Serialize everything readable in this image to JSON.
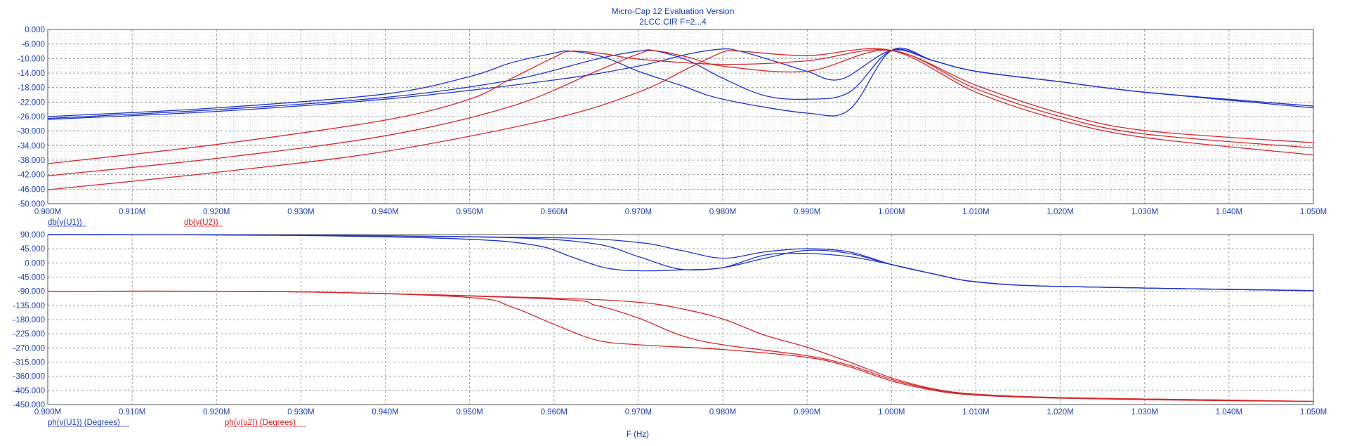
{
  "window": {
    "title": "Micro-Cap 12 Evaluation Version",
    "subtitle": "2LCC.CIR F=2...4"
  },
  "colors": {
    "u1": "#1f36c8",
    "u2": "#d42a2a",
    "axis_text": "#1a3fb0",
    "grid": "#909090"
  },
  "chart_data": [
    {
      "type": "line",
      "xlabel": "",
      "ylabel": "",
      "xlim": [
        0.9,
        1.05
      ],
      "ylim": [
        -50,
        0
      ],
      "x_ticks": [
        "0.900M",
        "0.910M",
        "0.920M",
        "0.930M",
        "0.940M",
        "0.950M",
        "0.960M",
        "0.970M",
        "0.980M",
        "0.990M",
        "1.000M",
        "1.010M",
        "1.020M",
        "1.030M",
        "1.040M",
        "1.050M"
      ],
      "y_ticks": [
        "0.000",
        "-6.000",
        "-10.000",
        "-14.000",
        "-18.000",
        "-22.000",
        "-26.000",
        "-30.000",
        "-34.000",
        "-38.000",
        "-42.000",
        "-46.000",
        "-50.000"
      ],
      "grid": "dense dotted",
      "legend": [
        "db(v(U1))",
        "db(v(U2))"
      ],
      "series": [
        {
          "name": "db(v(U1))",
          "group": "u1",
          "x": [
            0.9,
            0.92,
            0.94,
            0.95,
            0.955,
            0.96,
            0.962,
            0.966,
            0.97,
            0.975,
            0.98,
            0.99,
            0.995,
            1.0,
            1.005,
            1.01,
            1.02,
            1.03,
            1.05
          ],
          "y": [
            -25,
            -22.5,
            -18.5,
            -13.5,
            -9.5,
            -6.8,
            -6.2,
            -8,
            -12,
            -16,
            -20,
            -24,
            -23,
            -6,
            -9,
            -12,
            -15,
            -18,
            -22
          ]
        },
        {
          "name": "db(v(U1))",
          "group": "u1",
          "x": [
            0.9,
            0.92,
            0.94,
            0.955,
            0.965,
            0.97,
            0.972,
            0.976,
            0.98,
            0.985,
            0.99,
            0.995,
            1.0,
            1.005,
            1.01,
            1.02,
            1.03,
            1.05
          ],
          "y": [
            -25.5,
            -23,
            -19.5,
            -14.5,
            -8.5,
            -6.2,
            -6.1,
            -9,
            -14,
            -19,
            -20,
            -18,
            -6,
            -9,
            -12,
            -15,
            -18,
            -22
          ]
        },
        {
          "name": "db(v(U1))",
          "group": "u1",
          "x": [
            0.9,
            0.92,
            0.94,
            0.96,
            0.97,
            0.976,
            0.98,
            0.982,
            0.986,
            0.99,
            0.994,
            1.0,
            1.005,
            1.01,
            1.02,
            1.03,
            1.05
          ],
          "y": [
            -25.8,
            -23.5,
            -20,
            -14.5,
            -10.5,
            -7,
            -5.6,
            -6.2,
            -9,
            -12,
            -14.3,
            -6,
            -9,
            -12,
            -15,
            -18,
            -22.5
          ]
        },
        {
          "name": "db(v(U2))",
          "group": "u2",
          "x": [
            0.9,
            0.92,
            0.94,
            0.95,
            0.955,
            0.96,
            0.962,
            0.966,
            0.97,
            0.98,
            0.99,
            1.0,
            1.01,
            1.02,
            1.03,
            1.05
          ],
          "y": [
            -38.5,
            -33,
            -26,
            -20,
            -14,
            -8,
            -6.2,
            -7,
            -8.5,
            -10,
            -9,
            -6,
            -16,
            -24,
            -29,
            -32.5
          ]
        },
        {
          "name": "db(v(U2))",
          "group": "u2",
          "x": [
            0.9,
            0.92,
            0.94,
            0.955,
            0.965,
            0.97,
            0.972,
            0.976,
            0.98,
            0.99,
            1.0,
            1.01,
            1.02,
            1.03,
            1.05
          ],
          "y": [
            -42,
            -37,
            -30.5,
            -22,
            -12,
            -7,
            -6.1,
            -8,
            -10.5,
            -12,
            -6,
            -17,
            -25,
            -30,
            -34
          ]
        },
        {
          "name": "db(v(U2))",
          "group": "u2",
          "x": [
            0.9,
            0.92,
            0.94,
            0.96,
            0.97,
            0.976,
            0.98,
            0.982,
            0.99,
            1.0,
            1.01,
            1.02,
            1.03,
            1.05
          ],
          "y": [
            -46,
            -41,
            -35,
            -25.5,
            -18,
            -11,
            -6.5,
            -6.2,
            -7.5,
            -6,
            -18,
            -26,
            -31,
            -36
          ]
        }
      ]
    },
    {
      "type": "line",
      "xlabel": "F (Hz)",
      "ylabel": "",
      "xlim": [
        0.9,
        1.05
      ],
      "ylim": [
        -450,
        90
      ],
      "x_ticks": [
        "0.900M",
        "0.910M",
        "0.920M",
        "0.930M",
        "0.940M",
        "0.950M",
        "0.960M",
        "0.970M",
        "0.980M",
        "0.990M",
        "1.000M",
        "1.010M",
        "1.020M",
        "1.030M",
        "1.040M",
        "1.050M"
      ],
      "y_ticks": [
        "90.000",
        "45.000",
        "0.000",
        "-45.000",
        "-90.000",
        "-135.000",
        "-180.000",
        "-225.000",
        "-270.000",
        "-315.000",
        "-360.000",
        "-405.000",
        "-450.000"
      ],
      "grid": "dashed",
      "legend": [
        "ph(v(U1)) (Degrees)",
        "ph(v(u2)) (Degrees)"
      ],
      "series": [
        {
          "name": "ph(v(U1)) (Degrees)",
          "group": "u1",
          "x": [
            0.9,
            0.93,
            0.95,
            0.958,
            0.962,
            0.966,
            0.97,
            0.975,
            0.98,
            0.985,
            0.99,
            0.995,
            1.0,
            1.005,
            1.01,
            1.02,
            1.05
          ],
          "y": [
            90,
            87,
            75,
            55,
            20,
            -15,
            -25,
            -22,
            -15,
            25,
            30,
            20,
            -5,
            -35,
            -60,
            -75,
            -88
          ]
        },
        {
          "name": "ph(v(U1)) (Degrees)",
          "group": "u1",
          "x": [
            0.9,
            0.93,
            0.955,
            0.965,
            0.97,
            0.975,
            0.98,
            0.985,
            0.99,
            0.995,
            1.0,
            1.005,
            1.01,
            1.02,
            1.05
          ],
          "y": [
            90,
            88,
            80,
            60,
            20,
            -20,
            -15,
            15,
            40,
            30,
            -5,
            -35,
            -60,
            -75,
            -88
          ]
        },
        {
          "name": "ph(v(U1)) (Degrees)",
          "group": "u1",
          "x": [
            0.9,
            0.93,
            0.96,
            0.97,
            0.975,
            0.98,
            0.985,
            0.99,
            0.995,
            1.0,
            1.005,
            1.01,
            1.02,
            1.05
          ],
          "y": [
            90,
            88,
            80,
            65,
            40,
            15,
            35,
            45,
            35,
            -5,
            -35,
            -60,
            -75,
            -88
          ]
        },
        {
          "name": "ph(v(u2)) (Degrees)",
          "group": "u2",
          "x": [
            0.9,
            0.93,
            0.95,
            0.955,
            0.96,
            0.965,
            0.97,
            0.98,
            0.99,
            0.995,
            1.0,
            1.005,
            1.01,
            1.02,
            1.04,
            1.05
          ],
          "y": [
            -90,
            -92,
            -110,
            -140,
            -195,
            -245,
            -260,
            -275,
            -300,
            -330,
            -375,
            -405,
            -420,
            -430,
            -438,
            -440
          ]
        },
        {
          "name": "ph(v(u2)) (Degrees)",
          "group": "u2",
          "x": [
            0.9,
            0.93,
            0.96,
            0.965,
            0.97,
            0.975,
            0.98,
            0.99,
            0.995,
            1.0,
            1.005,
            1.01,
            1.02,
            1.04,
            1.05
          ],
          "y": [
            -90,
            -92,
            -115,
            -135,
            -175,
            -230,
            -260,
            -295,
            -325,
            -370,
            -402,
            -418,
            -428,
            -436,
            -440
          ]
        },
        {
          "name": "ph(v(u2)) (Degrees)",
          "group": "u2",
          "x": [
            0.9,
            0.93,
            0.96,
            0.97,
            0.975,
            0.98,
            0.985,
            0.99,
            0.995,
            1.0,
            1.005,
            1.01,
            1.02,
            1.04,
            1.05
          ],
          "y": [
            -90,
            -92,
            -112,
            -125,
            -145,
            -178,
            -230,
            -268,
            -315,
            -365,
            -400,
            -417,
            -428,
            -436,
            -440
          ]
        }
      ]
    }
  ]
}
